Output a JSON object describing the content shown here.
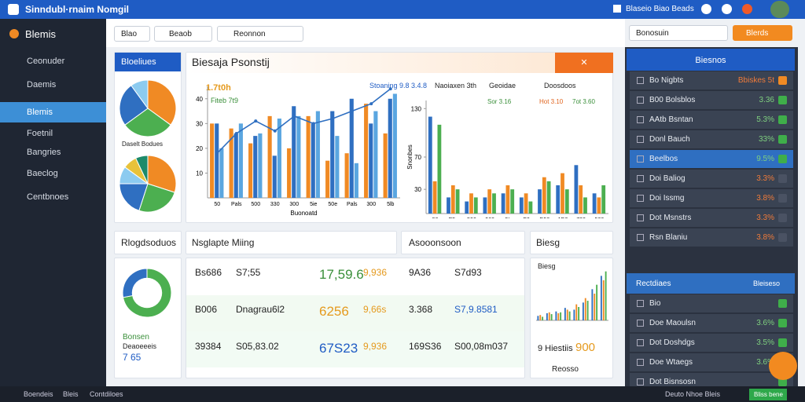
{
  "header": {
    "title": "Sinndubl·rnaim Nomgil",
    "link": "Blaseio Biao Beads"
  },
  "sidebar": {
    "brand": "Blemis",
    "items": [
      "Ceonuder",
      "Daemis",
      "Blemis",
      "Foetnil",
      "Bangries",
      "Baeclog",
      "Centbnoes"
    ]
  },
  "toolbar": {
    "buttons": [
      "Blao",
      "Beaob",
      "Reonnon"
    ],
    "input": "Bonosuin",
    "action": "Blerds"
  },
  "left_panel": {
    "title": "Bloeliues",
    "caption": "Daselt Bodues"
  },
  "main_panel": {
    "title": "Biesaja Psonstij",
    "legend": [
      "Stoaning 9.8 3.4.8",
      "Naoiaxen 3th",
      "Geoidae",
      "Doosdoos"
    ],
    "note1": "1.7t0h",
    "note2": "Fiteb 7t9",
    "legend2": [
      "Sor 3.16",
      "Hot 3.10",
      "7ot 3.60"
    ]
  },
  "charts": [
    {
      "type": "bar",
      "xlabel": "Buonoatd",
      "categories": [
        "50",
        "Pals",
        "500",
        "330",
        "300",
        "5ie",
        "50e",
        "Pals",
        "300",
        "5lb"
      ],
      "ylim": [
        0,
        45
      ],
      "yticks": [
        10,
        20,
        30,
        40
      ],
      "series": [
        {
          "color": "#f08a24",
          "values": [
            30,
            28,
            22,
            33,
            20,
            33,
            15,
            18,
            38,
            26
          ]
        },
        {
          "color": "#2f6fc1",
          "values": [
            30,
            26,
            25,
            17,
            37,
            30,
            35,
            40,
            30,
            40
          ]
        },
        {
          "color": "#5aa6e0",
          "values": [
            20,
            30,
            26,
            32,
            33,
            35,
            25,
            14,
            35,
            42
          ]
        },
        {
          "type": "line",
          "color": "#2f6fc1",
          "values": [
            18,
            26,
            31,
            27,
            33,
            30,
            32,
            35,
            38,
            44
          ]
        }
      ]
    },
    {
      "type": "bar",
      "ylabel": "Snonbes",
      "categories": [
        "50",
        "P5o",
        "500",
        "560",
        "5L",
        "P0",
        "D50",
        "1D0",
        "700",
        "530"
      ],
      "ylim": [
        0,
        140
      ],
      "yticks": [
        30,
        70,
        130
      ],
      "series": [
        {
          "color": "#2f6fc1",
          "values": [
            120,
            20,
            15,
            20,
            25,
            20,
            30,
            35,
            60,
            25
          ]
        },
        {
          "color": "#f08a24",
          "values": [
            40,
            35,
            25,
            30,
            35,
            25,
            45,
            50,
            35,
            20
          ]
        },
        {
          "color": "#4caf50",
          "values": [
            110,
            30,
            20,
            25,
            30,
            15,
            40,
            30,
            20,
            35
          ]
        }
      ]
    },
    {
      "type": "pie",
      "values": [
        35,
        30,
        25,
        10
      ],
      "colors": [
        "#f08a24",
        "#4caf50",
        "#2f6fc1",
        "#8ccbf0"
      ]
    },
    {
      "type": "pie",
      "values": [
        30,
        25,
        20,
        10,
        8,
        7
      ],
      "colors": [
        "#f08a24",
        "#4caf50",
        "#2f6fc1",
        "#8ccbf0",
        "#e8c23a",
        "#1d8a6a"
      ]
    },
    {
      "type": "donut",
      "values": [
        72,
        28
      ],
      "colors": [
        "#4caf50",
        "#2f6fc1"
      ]
    },
    {
      "type": "bar",
      "categories": [
        null,
        null,
        null,
        null,
        null,
        null,
        null,
        null
      ],
      "ylim": [
        0,
        60
      ],
      "yticks": [],
      "series": [
        {
          "color": "#2f6fc1",
          "values": [
            5,
            8,
            10,
            14,
            12,
            20,
            35,
            50
          ]
        },
        {
          "color": "#f08a24",
          "values": [
            6,
            9,
            8,
            12,
            18,
            25,
            30,
            45
          ]
        },
        {
          "color": "#4caf50",
          "values": [
            4,
            7,
            9,
            10,
            15,
            22,
            40,
            55
          ]
        }
      ]
    }
  ],
  "lower": {
    "titles": [
      "Rlogdsoduos",
      "Nsglapte Miing",
      "Asooonsoon",
      "Biesg"
    ],
    "donut_text": [
      "Bonsen",
      "Deaoeeeis",
      "7 65"
    ],
    "table": [
      [
        "Bs686",
        "S7;55",
        "17,59.6",
        "9,936"
      ],
      [
        "B006",
        "Dnagrau6l2",
        "6256",
        "9,66s"
      ],
      [
        "39384",
        "S05,83.02",
        "67S23",
        "9,936"
      ]
    ],
    "table2": [
      [
        "9A36",
        "S7d93"
      ],
      [
        "3.368",
        "S7,9.8581"
      ],
      [
        "169S36",
        "S00,08m037"
      ]
    ],
    "small": [
      "Biesg",
      "9 Hiestiis",
      "900",
      "Reosso"
    ]
  },
  "right": {
    "title": "Biesnos",
    "rows": [
      [
        "Bo Nigbts",
        "Bbiskes 5t"
      ],
      [
        "B00 Bolsblos",
        "3.36"
      ],
      [
        "AAtb Bsntan",
        "5.3%"
      ],
      [
        "Donl Bauch",
        "33%"
      ],
      [
        "Beelbos",
        "9.5%"
      ],
      [
        "Doi Baliog",
        "3.3%"
      ],
      [
        "Doi Issmg",
        "3.8%"
      ],
      [
        "Dot Msnstrs",
        "3.3%"
      ],
      [
        "Rsn Blaniu",
        "3.8%"
      ]
    ],
    "title2": "Rectdiaes",
    "title2b": "Bleiseso",
    "rows2": [
      [
        "Bio",
        ""
      ],
      [
        "Doe Maoulsn",
        "3.6%"
      ],
      [
        "Dot Doshdgs",
        "3.5%"
      ],
      [
        "Doe Wtaegs",
        "3.6%"
      ],
      [
        "Dot Bisnsosn",
        ""
      ]
    ]
  },
  "footer": {
    "left": [
      "Boendeis",
      "Bleis",
      "Contdiloes"
    ],
    "right": "Deuto Nhoe Bleis",
    "button": "Bliss bene"
  }
}
